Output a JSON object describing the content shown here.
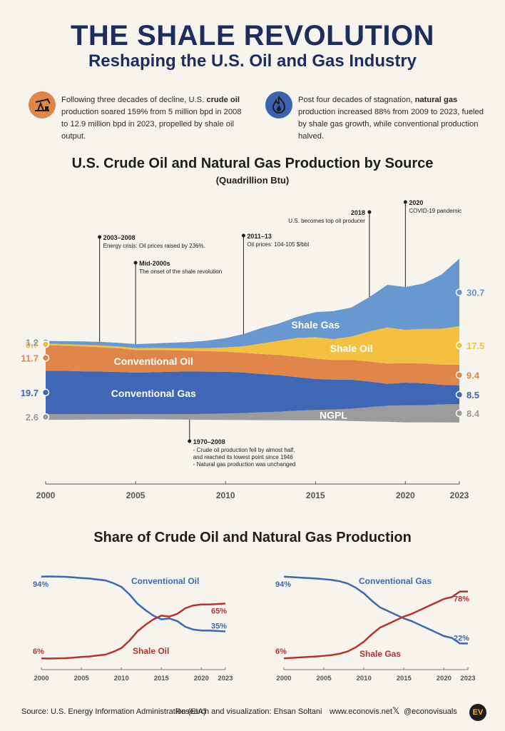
{
  "header": {
    "title": "THE SHALE REVOLUTION",
    "subtitle": "Reshaping the U.S. Oil and Gas Industry"
  },
  "intro": {
    "oil_text_a": "Following three decades of decline, U.S. ",
    "oil_bold": "crude oil",
    "oil_text_b": " production soared 159% from 5 million bpd in 2008 to 12.9 million bpd in 2023, propelled by shale oil output.",
    "gas_text_a": "Post four decades of stagnation, ",
    "gas_bold": "natural gas",
    "gas_text_b": " production increased 88% from 2009 to 2023, fueled by shale gas growth, while conventional production halved.",
    "oil_icon": "oil-pump-icon",
    "gas_icon": "flame-icon"
  },
  "colors": {
    "conventional_gas": "#3f67b5",
    "ngpl": "#9b9b9b",
    "conventional_oil": "#e0864a",
    "shale_oil": "#f3c13f",
    "shale_gas": "#6798cf",
    "oil_line": "#b8322a",
    "gas_line": "#3f67b5"
  },
  "chart_data": [
    {
      "type": "area",
      "title": "U.S. Crude Oil and Natural Gas Production by Source",
      "subtitle": "(Quadrillion Btu)",
      "x": [
        2000,
        2001,
        2002,
        2003,
        2004,
        2005,
        2006,
        2007,
        2008,
        2009,
        2010,
        2011,
        2012,
        2013,
        2014,
        2015,
        2016,
        2017,
        2018,
        2019,
        2020,
        2021,
        2022,
        2023
      ],
      "series": [
        {
          "name": "Conventional Gas",
          "color": "#3f67b5",
          "values": [
            19.7,
            19.8,
            19.5,
            19.4,
            19.2,
            18.9,
            19.1,
            19.3,
            19.4,
            19.2,
            19.0,
            18.4,
            17.4,
            16.6,
            15.2,
            14.1,
            13.6,
            13.2,
            11.7,
            10.0,
            10.3,
            10.0,
            8.9,
            8.5
          ]
        },
        {
          "name": "NGPL",
          "color": "#9b9b9b",
          "values": [
            2.6,
            2.5,
            2.5,
            2.4,
            2.4,
            2.3,
            2.3,
            2.4,
            2.5,
            2.7,
            2.9,
            3.2,
            3.6,
            3.9,
            4.4,
            4.7,
            5.0,
            5.6,
            6.5,
            7.3,
            7.8,
            7.8,
            8.2,
            8.4
          ]
        },
        {
          "name": "Conventional Oil",
          "color": "#e0864a",
          "values": [
            11.7,
            11.4,
            11.3,
            11.1,
            10.8,
            10.3,
            10.1,
            9.8,
            9.4,
            9.3,
            9.2,
            9.0,
            9.1,
            9.2,
            9.3,
            9.2,
            8.9,
            9.0,
            9.1,
            9.2,
            8.8,
            9.0,
            9.2,
            9.4
          ]
        },
        {
          "name": "Shale Oil",
          "color": "#f3c13f",
          "values": [
            0.7,
            0.7,
            0.8,
            0.8,
            0.8,
            0.9,
            1.0,
            1.0,
            1.1,
            1.4,
            1.9,
            3.0,
            4.8,
            6.5,
            8.6,
            9.8,
            9.5,
            10.6,
            13.7,
            16.4,
            15.2,
            15.7,
            16.3,
            17.5
          ]
        },
        {
          "name": "Shale Gas",
          "color": "#6798cf",
          "values": [
            1.2,
            1.3,
            1.5,
            1.6,
            1.7,
            1.8,
            2.0,
            2.4,
            2.9,
            3.4,
            4.2,
            5.5,
            7.0,
            7.9,
            9.6,
            11.4,
            12.7,
            13.2,
            15.6,
            19.4,
            19.5,
            20.6,
            24.6,
            30.7
          ]
        }
      ],
      "end_labels": {
        "start": [
          "1.2",
          "0.7",
          "11.7",
          "2.6",
          "19.7"
        ],
        "end": [
          "30.7",
          "17.5",
          "9.4",
          "8.4",
          "8.5"
        ]
      },
      "xticks": [
        "2000",
        "2005",
        "2010",
        "2015",
        "2020",
        "2023"
      ],
      "annotations": [
        {
          "year": 2003,
          "title": "2003–2008",
          "lines": [
            "Energy crisis: Oil prices raised by 236%."
          ]
        },
        {
          "year": 2005,
          "title": "Mid-2000s",
          "lines": [
            "The onset of the shale revolution"
          ]
        },
        {
          "year": 2011,
          "title": "2011–13",
          "lines": [
            "Oil prices: 104-105 $/bbl"
          ]
        },
        {
          "year": 2018,
          "title": "2018",
          "lines": [
            "U.S. becomes top oil producer"
          ]
        },
        {
          "year": 2020,
          "title": "2020",
          "lines": [
            "COVID-19 pandemic"
          ]
        },
        {
          "year": 2008,
          "title": "1970–2008",
          "lines": [
            "- Crude oil production fell by almost half,",
            "  and  reached its lowest point since 1946",
            "- Natural gas production was unchanged"
          ]
        }
      ]
    },
    {
      "type": "line",
      "title": "Share of Crude Oil and Natural Gas Production",
      "x": [
        2000,
        2001,
        2002,
        2003,
        2004,
        2005,
        2006,
        2007,
        2008,
        2009,
        2010,
        2011,
        2012,
        2013,
        2014,
        2015,
        2016,
        2017,
        2018,
        2019,
        2020,
        2021,
        2022,
        2023
      ],
      "series": [
        {
          "name": "Conventional Oil",
          "color": "#3f67b5",
          "values": [
            94,
            94.2,
            94,
            93.8,
            93.3,
            92.5,
            92,
            91,
            90,
            87,
            83,
            75,
            65,
            58,
            52,
            48,
            49,
            46,
            40,
            37,
            36,
            36,
            35.5,
            35
          ]
        },
        {
          "name": "Shale Oil",
          "color": "#b8322a",
          "values": [
            6,
            5.8,
            6,
            6.2,
            6.7,
            7.5,
            8,
            9,
            10,
            13,
            17,
            25,
            35,
            42,
            48,
            52,
            51,
            54,
            60,
            63,
            64,
            64,
            64.5,
            65
          ]
        }
      ],
      "start_label": "94%",
      "start_label_low": "6%",
      "end_label_high": "65%",
      "end_label_low": "35%",
      "xticks": [
        "2000",
        "2005",
        "2010",
        "2015",
        "2020",
        "2023"
      ]
    },
    {
      "type": "line",
      "title": "",
      "x": [
        2000,
        2001,
        2002,
        2003,
        2004,
        2005,
        2006,
        2007,
        2008,
        2009,
        2010,
        2011,
        2012,
        2013,
        2014,
        2015,
        2016,
        2017,
        2018,
        2019,
        2020,
        2021,
        2022,
        2023
      ],
      "series": [
        {
          "name": "Conventional Gas",
          "color": "#3f67b5",
          "values": [
            94,
            93.6,
            93,
            92.5,
            92,
            91.3,
            90.5,
            89,
            86.5,
            82,
            76,
            68,
            61,
            57,
            53,
            49,
            46,
            42,
            38,
            34,
            30,
            28,
            22,
            22
          ]
        },
        {
          "name": "Shale Gas",
          "color": "#b8322a",
          "values": [
            6,
            6.4,
            7,
            7.5,
            8,
            8.7,
            9.5,
            11,
            13.5,
            18,
            24,
            32,
            39,
            43,
            47,
            51,
            54,
            58,
            62,
            66,
            70,
            72,
            78,
            78
          ]
        }
      ],
      "start_label": "94%",
      "start_label_low": "6%",
      "end_label_high": "78%",
      "end_label_low": "22%",
      "xticks": [
        "2000",
        "2005",
        "2010",
        "2015",
        "2020",
        "2023"
      ]
    }
  ],
  "footer": {
    "source": "Source: U.S. Energy Information Administration (EIA)",
    "research": "Research and visualization: Ehsan Soltani",
    "site": "www.econovis.net",
    "handle": "@econovisuals",
    "logo_text": "EV"
  }
}
